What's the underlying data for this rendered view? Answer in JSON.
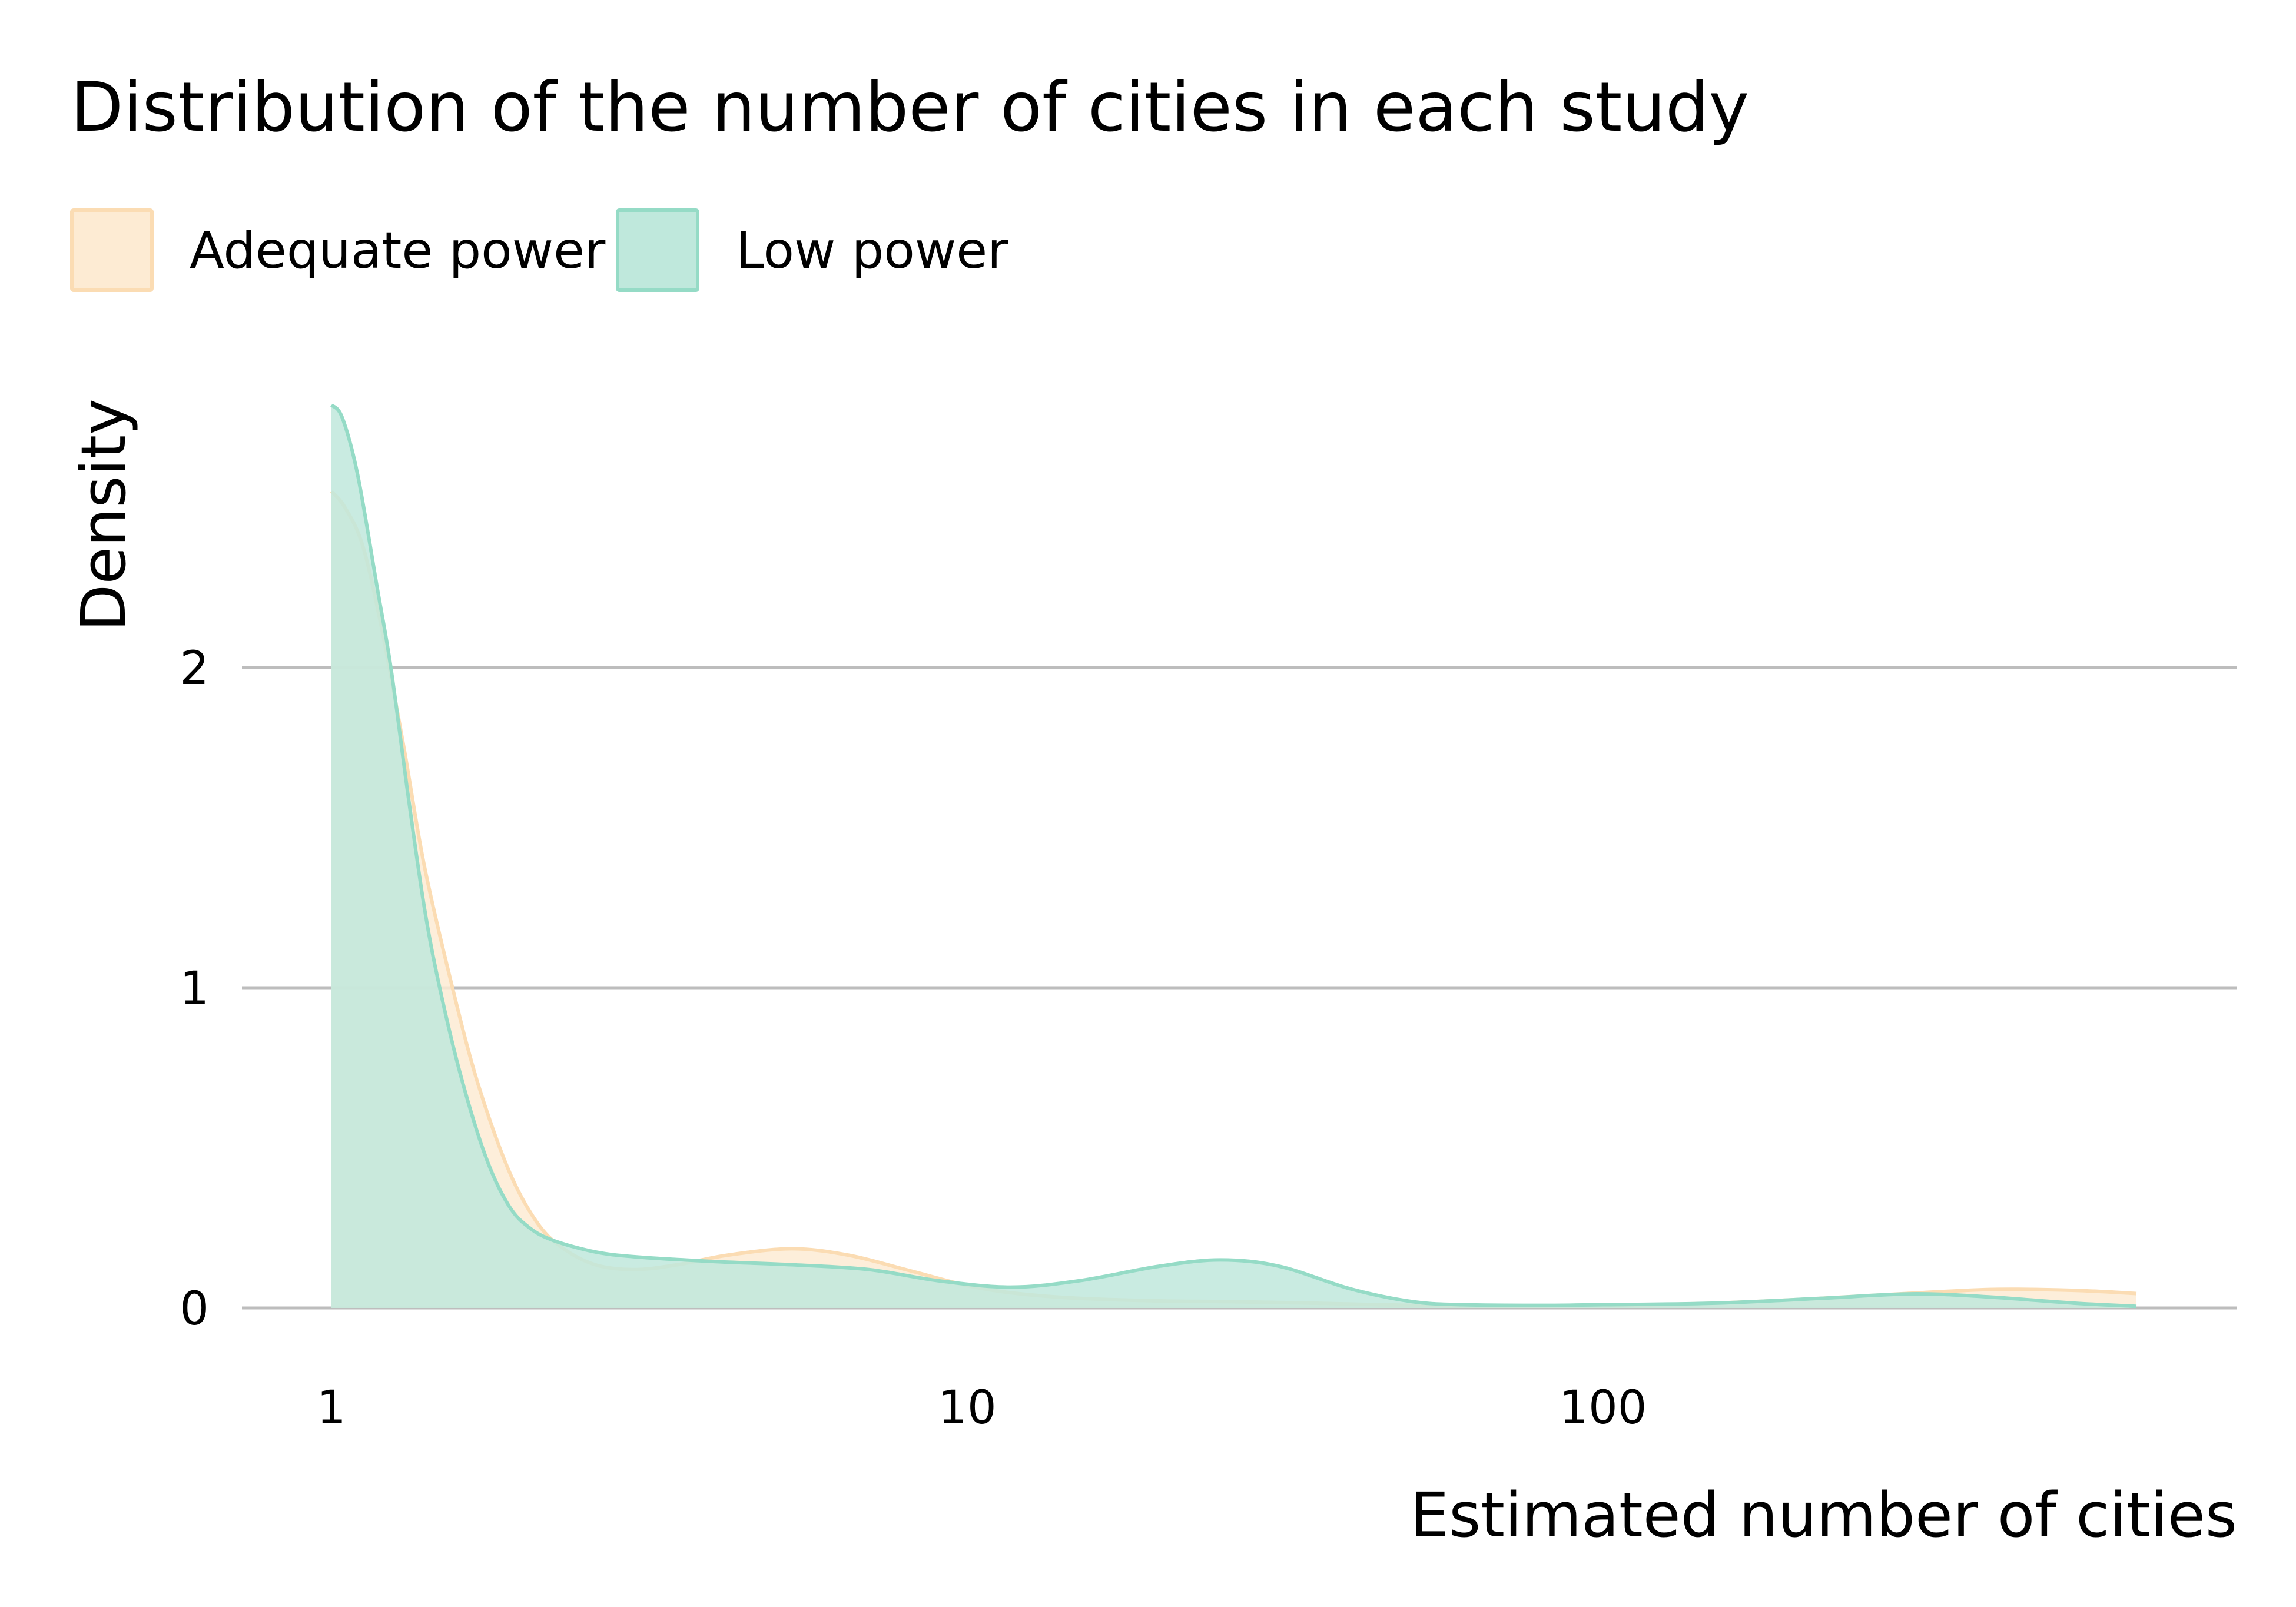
{
  "chart_data": {
    "type": "area",
    "title": "Distribution of the number of cities in each study",
    "xlabel": "Estimated number of cities",
    "ylabel": "Density",
    "x_scale": "log10",
    "xlim": [
      1,
      690
    ],
    "ylim": [
      0,
      2.85
    ],
    "x_ticks": [
      {
        "value": 1,
        "label": "1"
      },
      {
        "value": 10,
        "label": "10"
      },
      {
        "value": 100,
        "label": "100"
      }
    ],
    "y_ticks": [
      {
        "value": 0,
        "label": "0"
      },
      {
        "value": 1,
        "label": "1"
      },
      {
        "value": 2,
        "label": "2"
      }
    ],
    "grid": "horizontal",
    "legend_position": "top-left",
    "series": [
      {
        "name": "Adequate power",
        "fill": "#fdebd3",
        "stroke": "#fbdcb3",
        "x": [
          1,
          1.05,
          1.12,
          1.2,
          1.3,
          1.4,
          1.55,
          1.7,
          1.9,
          2.1,
          2.3,
          2.6,
          3.0,
          3.5,
          4.2,
          5.3,
          6.5,
          8,
          10,
          12,
          15,
          20,
          25,
          35,
          50,
          70,
          100,
          150,
          220,
          300,
          412,
          550,
          690
        ],
        "y": [
          2.55,
          2.5,
          2.38,
          2.12,
          1.75,
          1.38,
          1.0,
          0.7,
          0.43,
          0.27,
          0.19,
          0.135,
          0.12,
          0.135,
          0.165,
          0.185,
          0.165,
          0.12,
          0.07,
          0.045,
          0.03,
          0.022,
          0.02,
          0.015,
          0.008,
          0.006,
          0.008,
          0.015,
          0.03,
          0.045,
          0.058,
          0.055,
          0.045
        ]
      },
      {
        "name": "Low power",
        "fill": "#bfe8dc",
        "stroke": "#95dbc6",
        "x": [
          1,
          1.04,
          1.1,
          1.18,
          1.24,
          1.32,
          1.4,
          1.48,
          1.6,
          1.75,
          1.9,
          2.05,
          2.24,
          2.6,
          3.0,
          4.0,
          5.3,
          7,
          9,
          11.7,
          15,
          20,
          25,
          31,
          40,
          50,
          60,
          80,
          100,
          150,
          220,
          305,
          400,
          550,
          690
        ],
        "y": [
          2.82,
          2.78,
          2.6,
          2.25,
          2.0,
          1.6,
          1.25,
          1.0,
          0.72,
          0.47,
          0.32,
          0.25,
          0.21,
          0.175,
          0.16,
          0.145,
          0.135,
          0.12,
          0.085,
          0.065,
          0.085,
          0.13,
          0.15,
          0.13,
          0.06,
          0.02,
          0.01,
          0.008,
          0.01,
          0.015,
          0.03,
          0.044,
          0.035,
          0.015,
          0.005
        ]
      }
    ]
  }
}
